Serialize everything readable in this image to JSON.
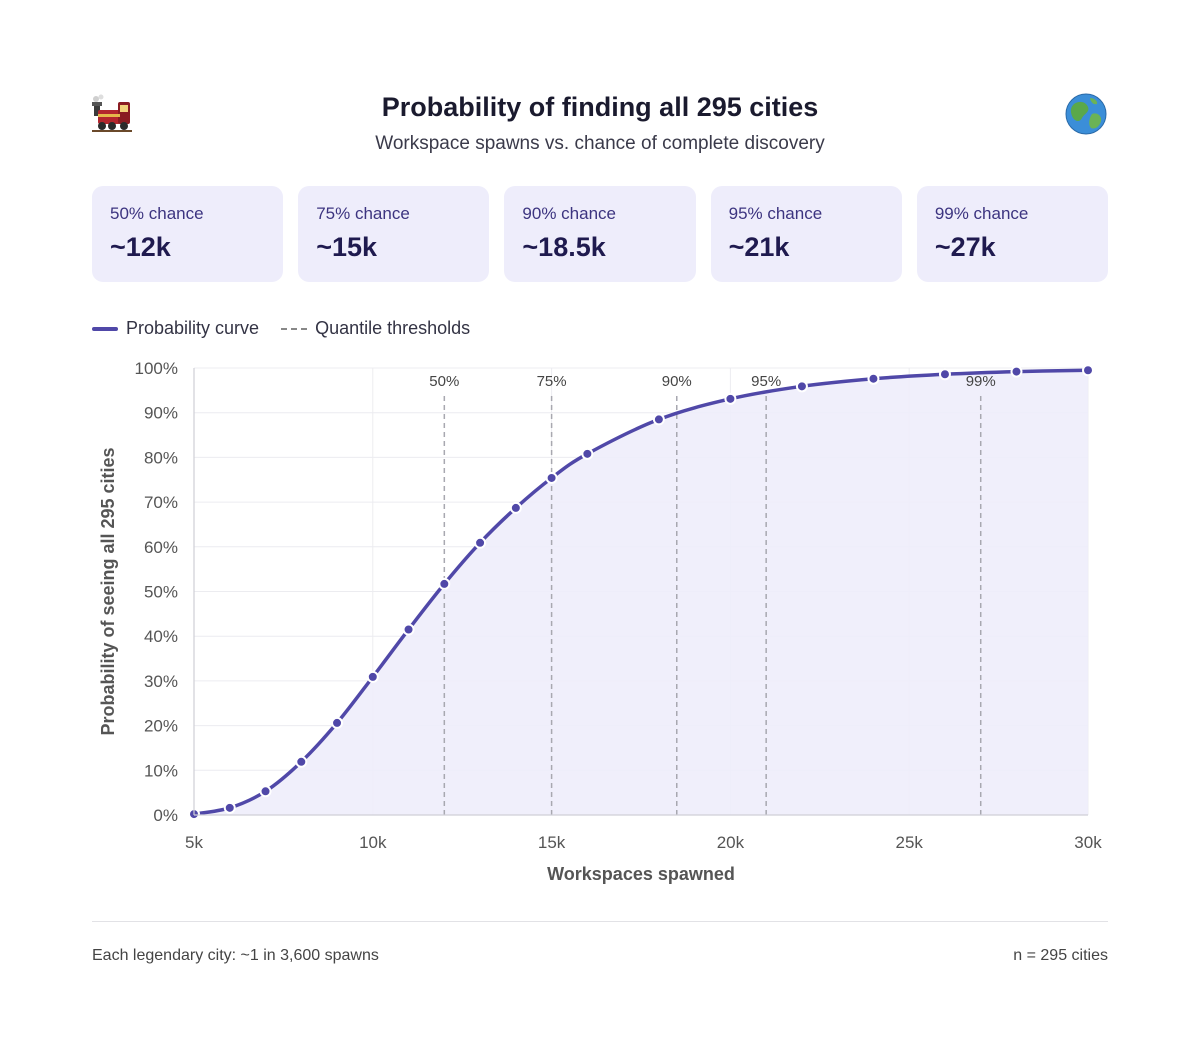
{
  "header": {
    "title": "Probability of finding all 295 cities",
    "subtitle": "Workspace spawns vs. chance of complete discovery",
    "left_icon": "train-icon",
    "right_icon": "globe-icon"
  },
  "cards": [
    {
      "label": "50% chance",
      "value": "~12k"
    },
    {
      "label": "75% chance",
      "value": "~15k"
    },
    {
      "label": "90% chance",
      "value": "~18.5k"
    },
    {
      "label": "95% chance",
      "value": "~21k"
    },
    {
      "label": "99% chance",
      "value": "~27k"
    }
  ],
  "legend": {
    "curve": "Probability curve",
    "thresholds": "Quantile thresholds"
  },
  "footer": {
    "left": "Each legendary city: ~1 in 3,600 spawns",
    "right": "n = 295 cities"
  },
  "colors": {
    "line": "#5048a8",
    "fill": "#eeedfb",
    "card_bg": "#eeedfb",
    "threshold": "#a8a8b0"
  },
  "chart_data": {
    "type": "line",
    "xlabel": "Workspaces spawned",
    "ylabel": "Probability of seeing all 295 cities",
    "xlim": [
      5000,
      30000
    ],
    "ylim": [
      0,
      100
    ],
    "x_ticks": [
      5000,
      10000,
      15000,
      20000,
      25000,
      30000
    ],
    "x_tick_labels": [
      "5k",
      "10k",
      "15k",
      "20k",
      "25k",
      "30k"
    ],
    "y_ticks": [
      0,
      10,
      20,
      30,
      40,
      50,
      60,
      70,
      80,
      90,
      100
    ],
    "y_tick_labels": [
      "0%",
      "10%",
      "20%",
      "30%",
      "40%",
      "50%",
      "60%",
      "70%",
      "80%",
      "90%",
      "100%"
    ],
    "grid": true,
    "legend_position": "top-left",
    "series": [
      {
        "name": "Probability curve",
        "x": [
          5000,
          6000,
          7000,
          8000,
          9000,
          10000,
          11000,
          12000,
          13000,
          14000,
          15000,
          16000,
          18000,
          20000,
          22000,
          24000,
          26000,
          28000,
          30000
        ],
        "y": [
          0.2,
          1.6,
          5.3,
          11.9,
          20.6,
          30.9,
          41.5,
          51.7,
          60.9,
          68.7,
          75.4,
          80.8,
          88.5,
          93.1,
          95.9,
          97.6,
          98.6,
          99.2,
          99.5
        ]
      }
    ],
    "thresholds": [
      {
        "label": "50%",
        "x": 12000
      },
      {
        "label": "75%",
        "x": 15000
      },
      {
        "label": "90%",
        "x": 18500
      },
      {
        "label": "95%",
        "x": 21000
      },
      {
        "label": "99%",
        "x": 27000
      }
    ]
  }
}
